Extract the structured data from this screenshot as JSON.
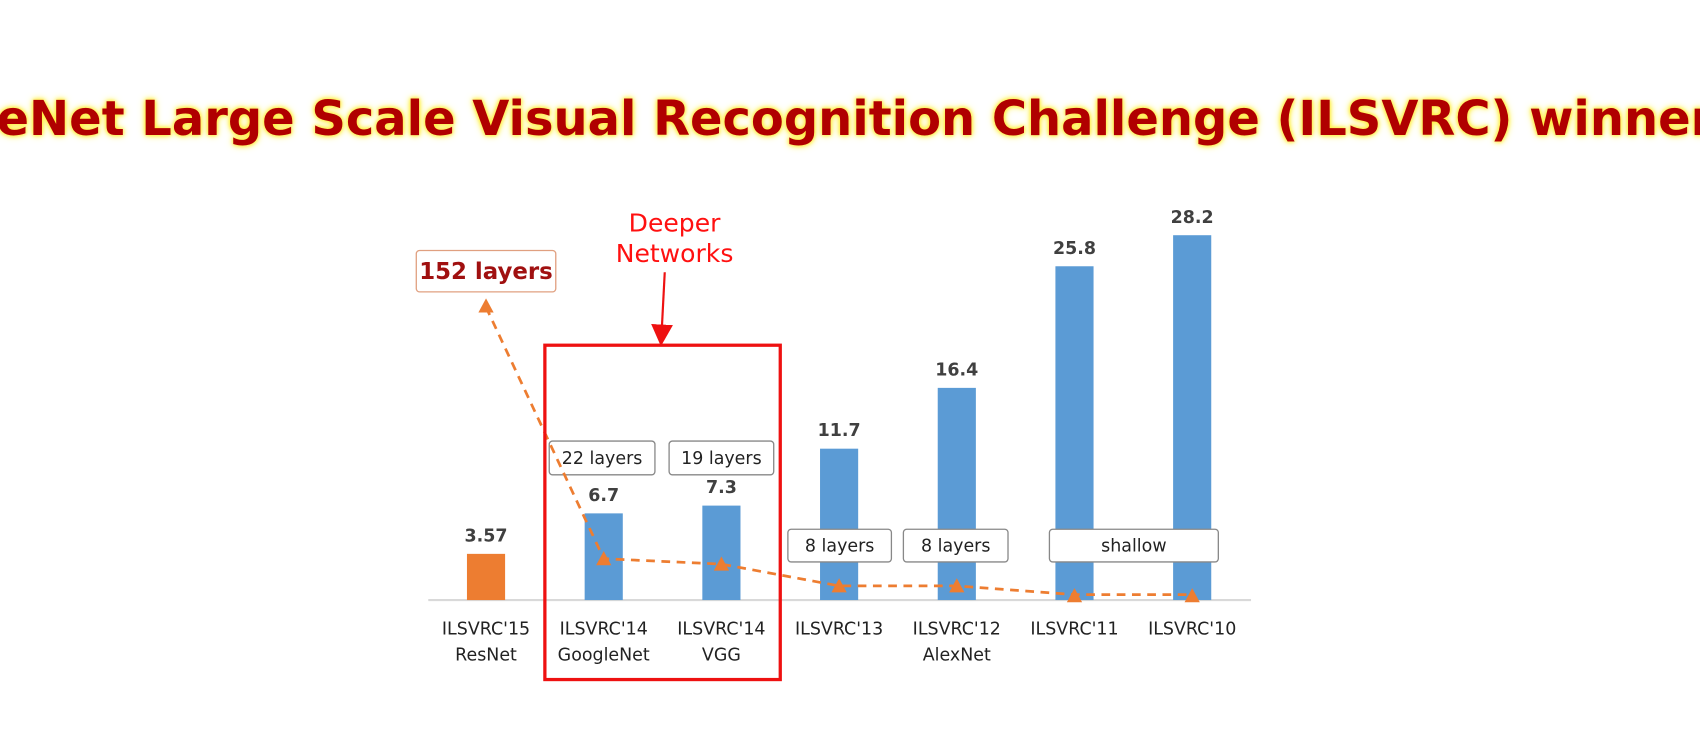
{
  "chart_data": {
    "type": "bar",
    "title": "ImageNet Large Scale Visual Recognition Challenge (ILSVRC) winners！ ！",
    "categories": [
      [
        "ILSVRC'15",
        "ResNet"
      ],
      [
        "ILSVRC'14",
        "GoogleNet"
      ],
      [
        "ILSVRC'14",
        "VGG"
      ],
      [
        "ILSVRC'13"
      ],
      [
        "ILSVRC'12",
        "AlexNet"
      ],
      [
        "ILSVRC'11"
      ],
      [
        "ILSVRC'10"
      ]
    ],
    "values": [
      3.57,
      6.7,
      7.3,
      11.7,
      16.4,
      25.8,
      28.2
    ],
    "colors": [
      "#ed7d31",
      "#5b9bd5",
      "#5b9bd5",
      "#5b9bd5",
      "#5b9bd5",
      "#5b9bd5",
      "#5b9bd5"
    ],
    "layer_labels": [
      "152 layers",
      "22 layers",
      "19 layers",
      "8 layers",
      "8 layers",
      "shallow"
    ],
    "annotation": [
      "Deeper",
      "Networks"
    ]
  }
}
